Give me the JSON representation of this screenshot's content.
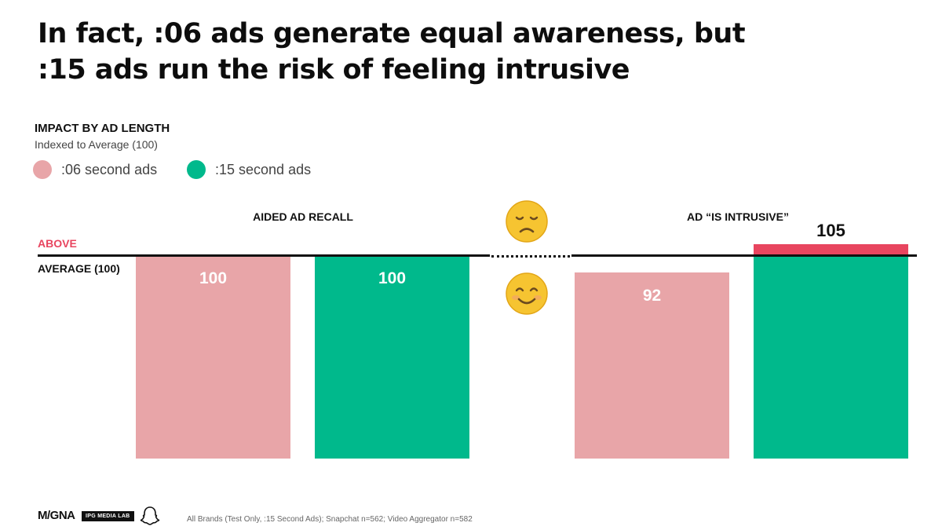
{
  "header": {
    "title_line1": "In fact, :06 ads generate equal awareness, but",
    "title_line2": ":15 ads run the risk of feeling intrusive"
  },
  "chart_meta": {
    "subtitle": "IMPACT BY AD LENGTH",
    "note": "Indexed to Average (100)",
    "above_label": "ABOVE",
    "average_label": "AVERAGE (100)"
  },
  "legend": [
    {
      "label": ":06 second ads",
      "color": "#e8a5a8"
    },
    {
      "label": ":15 second ads",
      "color": "#00b98c"
    }
  ],
  "chart_data": {
    "type": "bar",
    "categories": [
      "AIDED AD RECALL",
      "AD “IS INTRUSIVE”"
    ],
    "series": [
      {
        "name": ":06 second ads",
        "values": [
          100,
          92
        ]
      },
      {
        "name": ":15 second ads",
        "values": [
          100,
          105
        ]
      }
    ],
    "value_labels": [
      [
        "100",
        "92"
      ],
      [
        "100",
        "105"
      ]
    ],
    "baseline": 100,
    "ylabel": "",
    "colors": {
      "s06": "#e8a5a8",
      "s15": "#00b98c",
      "above": "#e8455f"
    },
    "icons": [
      "sad-face-icon",
      "smiling-face-icon"
    ]
  },
  "footer": {
    "note": "All Brands (Test Only, :15 Second Ads); Snapchat n=562; Video Aggregator n=582",
    "logo1": "M/GNA",
    "logo2": "IPG MEDIA LAB",
    "logo3_icon": "snapchat-ghost-icon"
  }
}
